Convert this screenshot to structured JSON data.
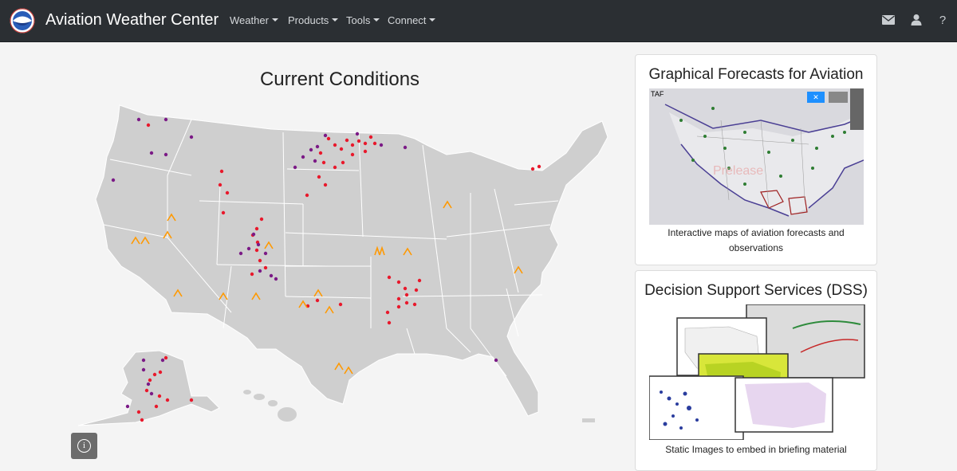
{
  "navbar": {
    "brand": "Aviation Weather Center",
    "menus": [
      "Weather",
      "Products",
      "Tools",
      "Connect"
    ],
    "icons": [
      "mail-icon",
      "user-icon",
      "help-icon"
    ]
  },
  "main": {
    "title": "Current Conditions",
    "info_icon_label": "i"
  },
  "cards": [
    {
      "title": "Graphical Forecasts for Aviation",
      "map_label": "TAF",
      "description": "Interactive maps of aviation forecasts and observations"
    },
    {
      "title": "Decision Support Services (DSS)",
      "description": "Static Images to embed in briefing material"
    }
  ],
  "colors": {
    "navbar": "#2b2f33",
    "map_fill": "#cfcfcf",
    "red_dot": "#e8192c",
    "purple_dot": "#7b1a86",
    "orange_marker": "#ff9900"
  }
}
